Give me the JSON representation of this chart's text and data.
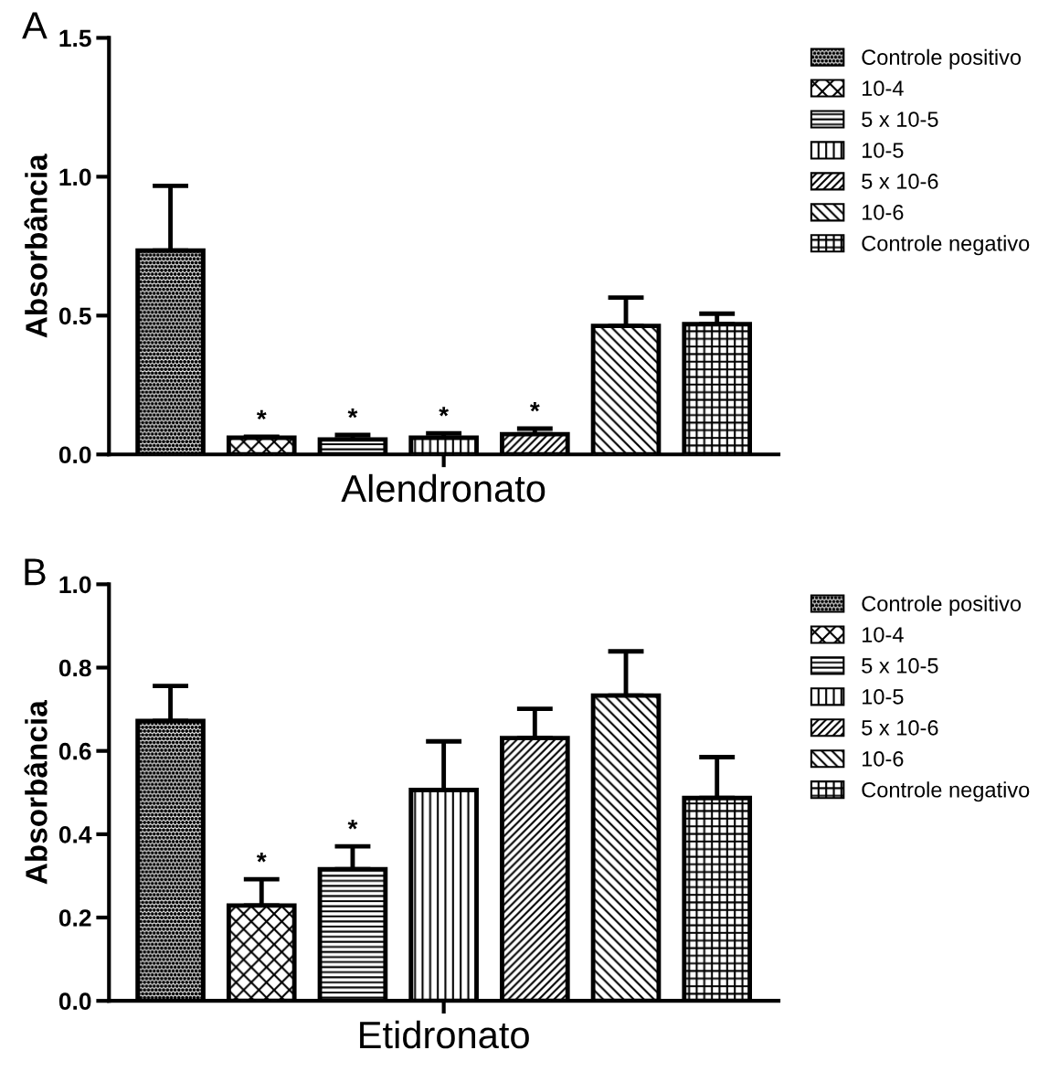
{
  "chart_data": [
    {
      "type": "bar",
      "title": "A",
      "xlabel": "Alendronato",
      "ylabel": "Absorbância",
      "categories": [
        null
      ],
      "ylim": [
        0,
        1.5
      ],
      "yticks": [
        {
          "value": 0,
          "label": "0.0"
        },
        {
          "value": 0.5,
          "label": "0.5"
        },
        {
          "value": 1.0,
          "label": "1.0"
        },
        {
          "value": 1.5,
          "label": "1.5"
        }
      ],
      "grid": false,
      "legend": "right",
      "series": [
        {
          "name": "Controle positivo",
          "color": "#000000",
          "values": [
            0.734
          ],
          "errors": [
            [
              0.734,
              0.967
            ]
          ],
          "value_labels": [
            null
          ]
        },
        {
          "name": "10-4",
          "color": "#000000",
          "values": [
            0.06
          ],
          "errors": [
            [
              0.06,
              0.064
            ]
          ],
          "value_labels": [
            "*"
          ]
        },
        {
          "name": "5 x 10-5",
          "color": "#000000",
          "values": [
            0.054
          ],
          "errors": [
            [
              0.054,
              0.07
            ]
          ],
          "value_labels": [
            "*"
          ]
        },
        {
          "name": "10-5",
          "color": "#000000",
          "values": [
            0.06
          ],
          "errors": [
            [
              0.06,
              0.076
            ]
          ],
          "value_labels": [
            "*"
          ]
        },
        {
          "name": "5 x 10-6",
          "color": "#000000",
          "values": [
            0.073
          ],
          "errors": [
            [
              0.073,
              0.093
            ]
          ],
          "value_labels": [
            "*"
          ]
        },
        {
          "name": "10-6",
          "color": "#000000",
          "values": [
            0.463
          ],
          "errors": [
            [
              0.463,
              0.565
            ]
          ],
          "value_labels": [
            null
          ]
        },
        {
          "name": "Controle negativo",
          "color": "#000000",
          "values": [
            0.469
          ],
          "errors": [
            [
              0.469,
              0.507
            ]
          ],
          "value_labels": [
            null
          ]
        }
      ]
    },
    {
      "type": "bar",
      "title": "B",
      "xlabel": "Etidronato",
      "ylabel": "Absorbância",
      "categories": [
        null
      ],
      "ylim": [
        0,
        1.0
      ],
      "yticks": [
        {
          "value": 0,
          "label": "0.0"
        },
        {
          "value": 0.2,
          "label": "0.2"
        },
        {
          "value": 0.4,
          "label": "0.4"
        },
        {
          "value": 0.6,
          "label": "0.6"
        },
        {
          "value": 0.8,
          "label": "0.8"
        },
        {
          "value": 1.0,
          "label": "1.0"
        }
      ],
      "grid": false,
      "legend": "right",
      "series": [
        {
          "name": "Controle positivo",
          "color": "#000000",
          "values": [
            0.672
          ],
          "errors": [
            [
              0.672,
              0.756
            ]
          ],
          "value_labels": [
            null
          ]
        },
        {
          "name": "10-4",
          "color": "#000000",
          "values": [
            0.229
          ],
          "errors": [
            [
              0.229,
              0.292
            ]
          ],
          "value_labels": [
            "*"
          ]
        },
        {
          "name": "5 x 10-5",
          "color": "#000000",
          "values": [
            0.316
          ],
          "errors": [
            [
              0.316,
              0.371
            ]
          ],
          "value_labels": [
            "*"
          ]
        },
        {
          "name": "10-5",
          "color": "#000000",
          "values": [
            0.506
          ],
          "errors": [
            [
              0.506,
              0.623
            ]
          ],
          "value_labels": [
            null
          ]
        },
        {
          "name": "5 x 10-6",
          "color": "#000000",
          "values": [
            0.631
          ],
          "errors": [
            [
              0.631,
              0.701
            ]
          ],
          "value_labels": [
            null
          ]
        },
        {
          "name": "10-6",
          "color": "#000000",
          "values": [
            0.733
          ],
          "errors": [
            [
              0.733,
              0.839
            ]
          ],
          "value_labels": [
            null
          ]
        },
        {
          "name": "Controle negativo",
          "color": "#000000",
          "values": [
            0.487
          ],
          "errors": [
            [
              0.487,
              0.585
            ]
          ],
          "value_labels": [
            null
          ]
        }
      ]
    }
  ]
}
